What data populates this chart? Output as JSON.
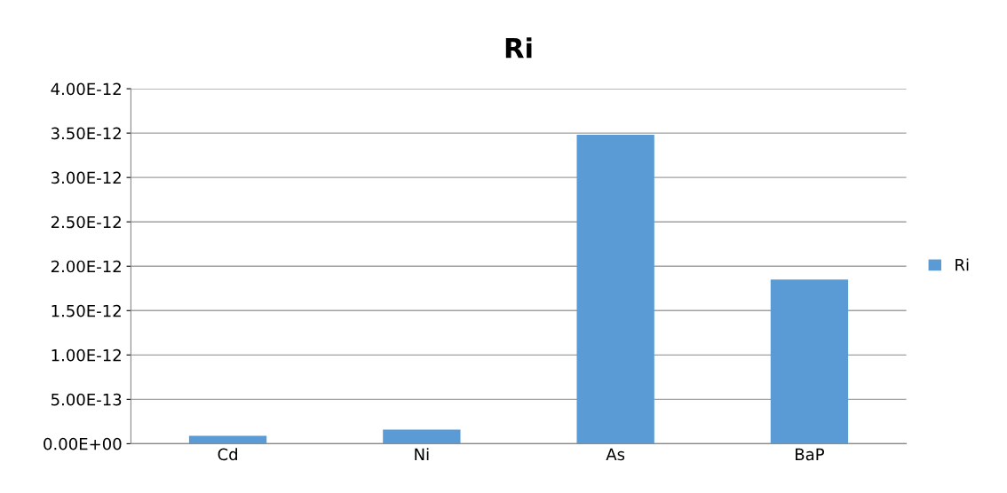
{
  "chart_data": {
    "type": "bar",
    "title": "Ri",
    "categories": [
      "Cd",
      "Ni",
      "As",
      "BaP"
    ],
    "series": [
      {
        "name": "Ri",
        "color": "#5b9bd5",
        "values": [
          9e-14,
          1.6e-13,
          3.48e-12,
          1.85e-12
        ]
      }
    ],
    "ylim": [
      0,
      4e-12
    ],
    "yticks": [
      {
        "value": 0,
        "label": "0.00E+00"
      },
      {
        "value": 5e-13,
        "label": "5.00E-13"
      },
      {
        "value": 1e-12,
        "label": "1.00E-12"
      },
      {
        "value": 1.5e-12,
        "label": "1.50E-12"
      },
      {
        "value": 2e-12,
        "label": "2.00E-12"
      },
      {
        "value": 2.5e-12,
        "label": "2.50E-12"
      },
      {
        "value": 3e-12,
        "label": "3.00E-12"
      },
      {
        "value": 3.5e-12,
        "label": "3.50E-12"
      },
      {
        "value": 4e-12,
        "label": "4.00E-12"
      }
    ],
    "grid": "y",
    "legend": "right"
  }
}
